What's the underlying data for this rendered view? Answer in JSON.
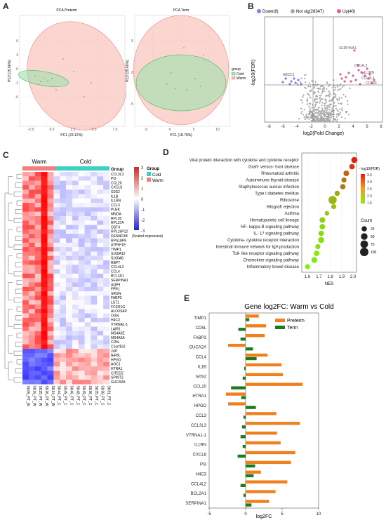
{
  "labels": {
    "A": "A",
    "B": "B",
    "C": "C",
    "D": "D",
    "E": "E"
  },
  "pcaPreterm": {
    "title": "PCA Preterm",
    "xlabel": "PC1 (23.12%)",
    "ylabel": "PC2 (15.66%)",
    "xticks": [
      "-2.5",
      "0.0",
      "2.5",
      "5.0",
      "7.5"
    ],
    "yticks": [
      "6",
      "3",
      "0",
      "-3",
      "-6"
    ],
    "legendTitle": "group",
    "legend": [
      "Cold",
      "Warm"
    ]
  },
  "pcaTerm": {
    "title": "PCA Term",
    "xlabel": "PC1 (18.79%)",
    "ylabel": "PC2 (15.60%)",
    "xticks": [
      "-5",
      "0",
      "5",
      "10"
    ],
    "yticks": [
      "5",
      "0",
      "-5"
    ],
    "legendTitle": "group",
    "legend": [
      "Cold",
      "Warm"
    ]
  },
  "volcano": {
    "legend": [
      {
        "label": "Down(8)",
        "color": "#8080e0"
      },
      {
        "label": "Not sig(28347)",
        "color": "#a8a8a8"
      },
      {
        "label": "Up(40)",
        "color": "#e0609a"
      }
    ],
    "ylabel": "-log10(FDR)",
    "xlabel": "log2(Fold Change)",
    "xticks": [
      "-8",
      "-6",
      "-4",
      "-2",
      "0",
      "2",
      "4",
      "6",
      "8"
    ],
    "genes": [
      "SERPINA1",
      "CCL4L2",
      "IL1RN",
      "CCL3L3",
      "CCL20",
      "ABCC1"
    ]
  },
  "heatmap": {
    "groups": [
      "Warm",
      "Cold"
    ],
    "genes": [
      "CCL3L3",
      "PI3",
      "CCL20",
      "CXCL8",
      "G0S2",
      "IL1B",
      "IL1RN",
      "CCL3",
      "PLEK",
      "MNDA",
      "RPL35",
      "RPL37A",
      "OST4",
      "RPL19P12",
      "DENND1B",
      "RPS18P9",
      "ATP5F1E",
      "TIMP1",
      "S100A12",
      "S100A8",
      "RBP7",
      "CCL4L2",
      "CCL4",
      "BCL2A1",
      "SERPINA1",
      "AQP9",
      "FPR1",
      "SRGN",
      "FABP3",
      "LST1",
      "FCER1G",
      "ALOX5AP",
      "OGN",
      "H4C3",
      "VTRNA1-1",
      "LAIR1",
      "MS4A6E",
      "MS4A6A",
      "CD5L",
      "C1orf162",
      "JUP",
      "IER5L",
      "HPGD",
      "AOC1",
      "HTRA1",
      "CITED2",
      "SPINT2",
      "GUCA2A"
    ],
    "samples": [
      "SU06_PT_W",
      "SU16_PT_W",
      "SU25_PT_W",
      "SU26_PT_W",
      "SU14_PT_W",
      "SU44_PT_C",
      "SU45_PT_C",
      "SU46_PT_C",
      "SU48_PT_C",
      "SU49_PT_C",
      "SU36_PT_C",
      "SU35_PT_C",
      "SU38_PT_C",
      "SU91_PT_C"
    ],
    "scaleTicks": [
      "3",
      "2",
      "1",
      "0",
      "-1",
      "-2",
      "-3"
    ],
    "scaleLabel": "(Scaled expression)",
    "groupLabel": "Group",
    "legendTitle": "Group",
    "legend": [
      "Cold",
      "Warm"
    ]
  },
  "dotplot": {
    "terms": [
      "Viral protein interaction with cytokine and cytokine receptor",
      "Graft- versus- host disease",
      "Rheumatoid arthritis",
      "Autoimmune thyroid disease",
      "Staphylococcus aureus infection",
      "Type I diabetes mellitus",
      "Ribosome",
      "Allograft rejection",
      "Asthma",
      "Hematopoietic cell lineage",
      "NF- kappa B signaling pathway",
      "IL- 17 signaling pathway",
      "Cytokine- cytokine receptor interaction",
      "Intestinal immune network for IgA production",
      "Toll- like receptor signaling pathway",
      "Chemokine signaling pathway",
      "Inflammatory bowel disease"
    ],
    "nes": [
      2.01,
      1.99,
      1.94,
      1.92,
      1.91,
      1.86,
      1.82,
      1.83,
      1.77,
      1.73,
      1.73,
      1.72,
      1.72,
      1.69,
      1.68,
      1.66,
      1.6
    ],
    "counts": [
      40,
      28,
      30,
      22,
      25,
      24,
      90,
      22,
      15,
      30,
      28,
      25,
      40,
      22,
      28,
      35,
      22
    ],
    "fdr": [
      4,
      3.7,
      3.2,
      3,
      3,
      2.4,
      2.2,
      2.1,
      2,
      1.9,
      1.8,
      1.8,
      1.7,
      1.7,
      1.6,
      1.6,
      1.5
    ],
    "xlabel": "NES",
    "xticks": [
      "1.6",
      "1.7",
      "1.8",
      "1.9",
      "2.0"
    ],
    "colorTitle": "- log10(FDR)",
    "colorTicks": [
      "3.5",
      "3.0",
      "2.5",
      "2.0",
      "1.5"
    ],
    "sizeTitle": "Count",
    "sizeTicks": [
      "25",
      "50",
      "75",
      "100"
    ]
  },
  "chart_data": {
    "type": "bar",
    "title": "Gene log2FC: Warm vs Cold",
    "xlabel": "log2FC",
    "xlim": [
      -5,
      10
    ],
    "xticks": [
      "-5",
      "0",
      "5",
      "10"
    ],
    "categories": [
      "TIMP1",
      "CD5L",
      "FABP3",
      "GUCA2A",
      "CCL4",
      "IL1B",
      "G0S2",
      "CCL20",
      "HTRA1",
      "HPGD",
      "CCL3",
      "CCL3L3",
      "VTRNA1-1",
      "IL1RN",
      "CXCL8",
      "PI3",
      "H4C3",
      "CCL4L2",
      "BCL2A1",
      "SERPINA1"
    ],
    "series": [
      {
        "name": "Preterm",
        "color": "#f07f1e",
        "values": [
          1.8,
          2.8,
          2.6,
          -2.4,
          3.0,
          4.9,
          5.1,
          7.8,
          -2.7,
          -2.4,
          4.2,
          7.4,
          4.3,
          4.8,
          6.8,
          6.2,
          2.1,
          5.7,
          4.1,
          3.2
        ]
      },
      {
        "name": "Term",
        "color": "#1f7a1f",
        "values": [
          0.5,
          -1.0,
          -0.7,
          1.0,
          1.5,
          -0.2,
          -0.4,
          -2.0,
          -0.6,
          1.4,
          -0.3,
          -0.5,
          -0.7,
          -0.4,
          -1.1,
          1.3,
          1.1,
          -0.7,
          -0.3,
          0.8
        ]
      }
    ]
  }
}
